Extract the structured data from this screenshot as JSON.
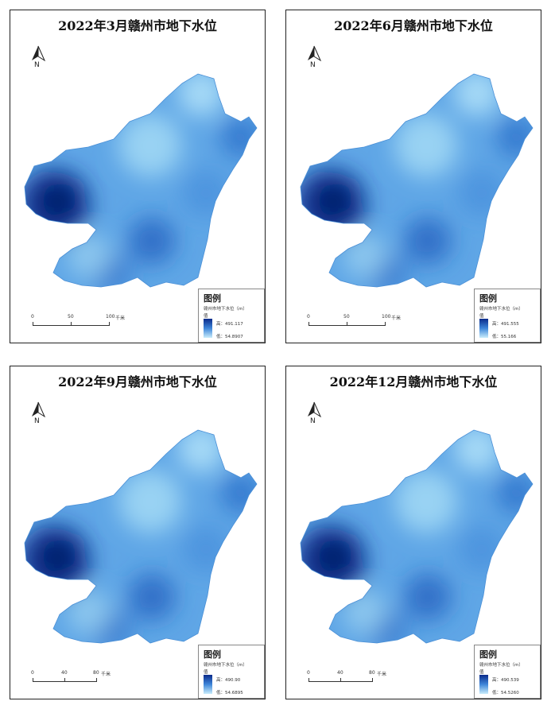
{
  "maps": [
    {
      "title": "2022年3月赣州市地下水位",
      "north_label": "N",
      "scale": {
        "ticks": [
          "0",
          "50",
          "100"
        ],
        "unit": "千米"
      },
      "legend": {
        "title": "图例",
        "subtitle": "赣州市地下水位（m）",
        "value_label": "值",
        "high": "高：491.117",
        "low": "低：54.8907"
      }
    },
    {
      "title": "2022年6月赣州市地下水位",
      "north_label": "N",
      "scale": {
        "ticks": [
          "0",
          "50",
          "100"
        ],
        "unit": "千米"
      },
      "legend": {
        "title": "图例",
        "subtitle": "赣州市地下水位（m）",
        "value_label": "值",
        "high": "高：491.555",
        "low": "低：55.166"
      }
    },
    {
      "title": "2022年9月赣州市地下水位",
      "north_label": "N",
      "scale": {
        "ticks": [
          "0",
          "40",
          "80"
        ],
        "unit": "千米"
      },
      "legend": {
        "title": "图例",
        "subtitle": "赣州市地下水位（m）",
        "value_label": "值",
        "high": "高：490.90",
        "low": "低：54.6895"
      }
    },
    {
      "title": "2022年12月赣州市地下水位",
      "north_label": "N",
      "scale": {
        "ticks": [
          "0",
          "40",
          "80"
        ],
        "unit": "千米"
      },
      "legend": {
        "title": "图例",
        "subtitle": "赣州市地下水位（m）",
        "value_label": "值",
        "high": "高：490.539",
        "low": "低：54.5260"
      }
    }
  ],
  "colors": {
    "high": "#0a2a8a",
    "mid": "#3e86d9",
    "low": "#c9ecfb",
    "frame": "#222222"
  }
}
